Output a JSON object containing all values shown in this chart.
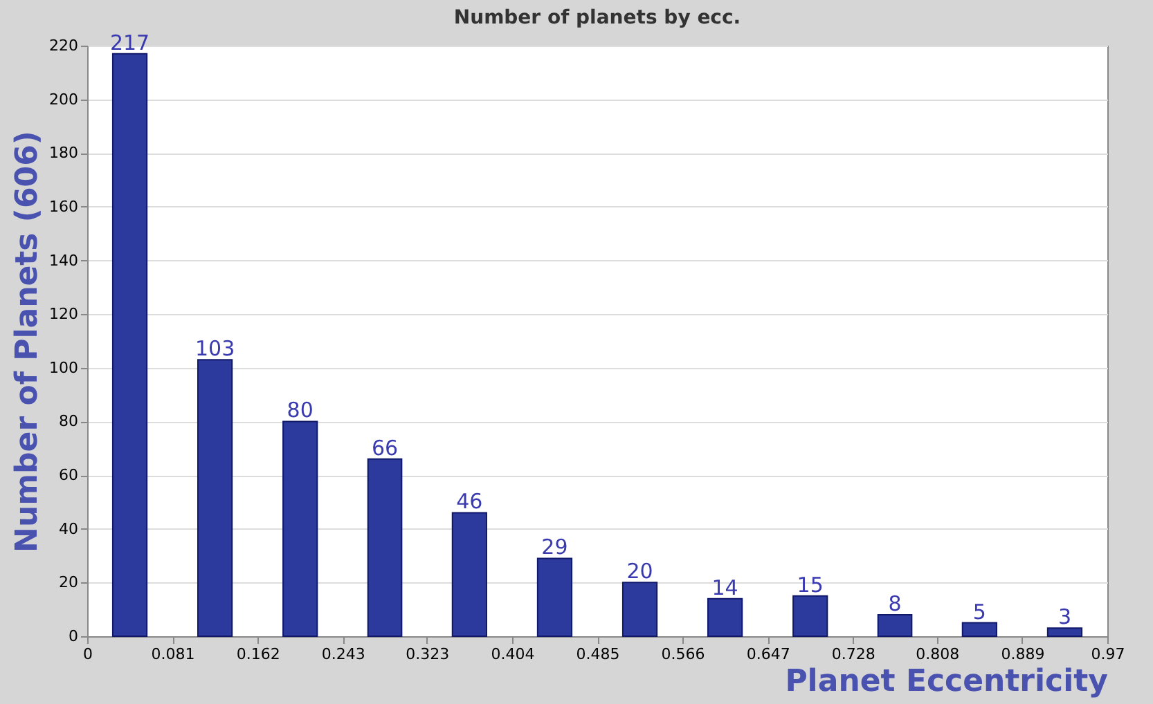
{
  "chart_data": {
    "type": "histogram",
    "title": "Number of planets by ecc.",
    "xlabel": "Planet Eccentricity",
    "ylabel": "Number of Planets (606)",
    "bins": [
      0,
      0.081,
      0.162,
      0.243,
      0.323,
      0.404,
      0.485,
      0.566,
      0.647,
      0.728,
      0.808,
      0.889,
      0.97
    ],
    "values": [
      217,
      103,
      80,
      66,
      46,
      29,
      20,
      14,
      15,
      8,
      5,
      3
    ],
    "color": "#2b3a9c",
    "data_labels": true,
    "grid": "y",
    "xlim": [
      0,
      0.97
    ],
    "xticks": [
      0,
      0.081,
      0.162,
      0.243,
      0.323,
      0.404,
      0.485,
      0.566,
      0.647,
      0.728,
      0.808,
      0.889,
      0.97
    ],
    "ylim": [
      0,
      220
    ],
    "yticks": [
      0,
      20,
      40,
      60,
      80,
      100,
      120,
      140,
      160,
      180,
      200,
      220
    ]
  }
}
